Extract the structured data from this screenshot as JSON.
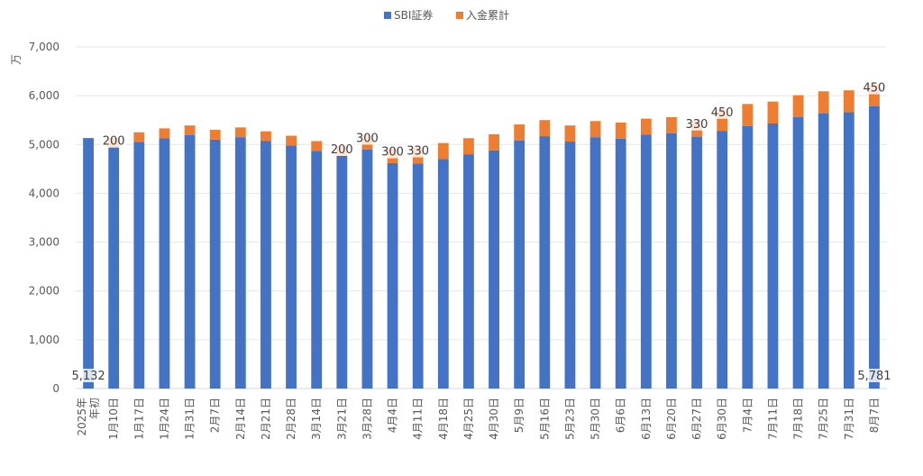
{
  "chart_data": {
    "type": "bar",
    "stacked": true,
    "ylabel": "万",
    "ylim": [
      0,
      7000
    ],
    "yticks": [
      0,
      1000,
      2000,
      3000,
      4000,
      5000,
      6000,
      7000
    ],
    "ytick_labels": [
      "0",
      "1,000",
      "2,000",
      "3,000",
      "4,000",
      "5,000",
      "6,000",
      "7,000"
    ],
    "grid": true,
    "legend": "top-center",
    "categories": [
      "2025年 年初",
      "1月10日",
      "1月17日",
      "1月24日",
      "1月31日",
      "2月7日",
      "2月14日",
      "2月21日",
      "2月28日",
      "3月14日",
      "3月21日",
      "3月28日",
      "4月4日",
      "4月11日",
      "4月18日",
      "4月25日",
      "4月30日",
      "5月9日",
      "5月16日",
      "5月23日",
      "5月30日",
      "6月6日",
      "6月13日",
      "6月20日",
      "6月27日",
      "6月30日",
      "7月4日",
      "7月11日",
      "7月18日",
      "7月25日",
      "7月31日",
      "8月7日"
    ],
    "series": [
      {
        "name": "SBI証券",
        "color": "#4472C4",
        "values": [
          5132,
          4940,
          5050,
          5130,
          5190,
          5100,
          5150,
          5070,
          4980,
          4870,
          4770,
          4900,
          4620,
          4610,
          4700,
          4800,
          4880,
          5080,
          5170,
          5060,
          5150,
          5120,
          5200,
          5230,
          5160,
          5280,
          5380,
          5430,
          5560,
          5640,
          5660,
          5781
        ]
      },
      {
        "name": "入金累計",
        "color": "#ED7D31",
        "values": [
          0,
          200,
          200,
          200,
          200,
          200,
          200,
          200,
          200,
          200,
          200,
          300,
          300,
          330,
          330,
          330,
          330,
          330,
          330,
          330,
          330,
          330,
          330,
          330,
          330,
          450,
          450,
          450,
          450,
          450,
          450,
          450
        ]
      }
    ],
    "data_labels": [
      {
        "index": 0,
        "text": "5,132"
      },
      {
        "index": 1,
        "text": "200"
      },
      {
        "index": 10,
        "text": "200"
      },
      {
        "index": 11,
        "text": "300"
      },
      {
        "index": 12,
        "text": "300"
      },
      {
        "index": 13,
        "text": "330"
      },
      {
        "index": 24,
        "text": "330"
      },
      {
        "index": 25,
        "text": "450"
      },
      {
        "index": 31,
        "text": "450"
      },
      {
        "index": 31,
        "text": "5,781"
      }
    ]
  }
}
